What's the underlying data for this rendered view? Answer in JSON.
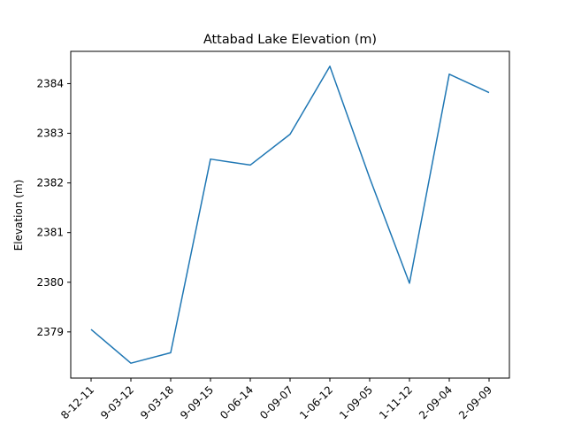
{
  "chart_data": {
    "type": "line",
    "title": "Attabad Lake Elevation (m)",
    "xlabel": "",
    "ylabel": "Elevation (m)",
    "categories": [
      "8-12-11",
      "9-03-12",
      "9-03-18",
      "9-09-15",
      "0-06-14",
      "0-09-07",
      "1-06-12",
      "1-09-05",
      "1-11-12",
      "2-09-04",
      "2-09-09"
    ],
    "series": [
      {
        "values": [
          2379.05,
          2378.37,
          2378.58,
          2382.48,
          2382.36,
          2382.98,
          2384.35,
          2382.1,
          2379.98,
          2384.19,
          2383.82
        ],
        "color": "#1f77b4"
      }
    ],
    "yticks": [
      2379,
      2380,
      2381,
      2382,
      2383,
      2384
    ],
    "ylim": [
      2378.07,
      2384.65
    ],
    "grid": false,
    "legend": "none"
  }
}
